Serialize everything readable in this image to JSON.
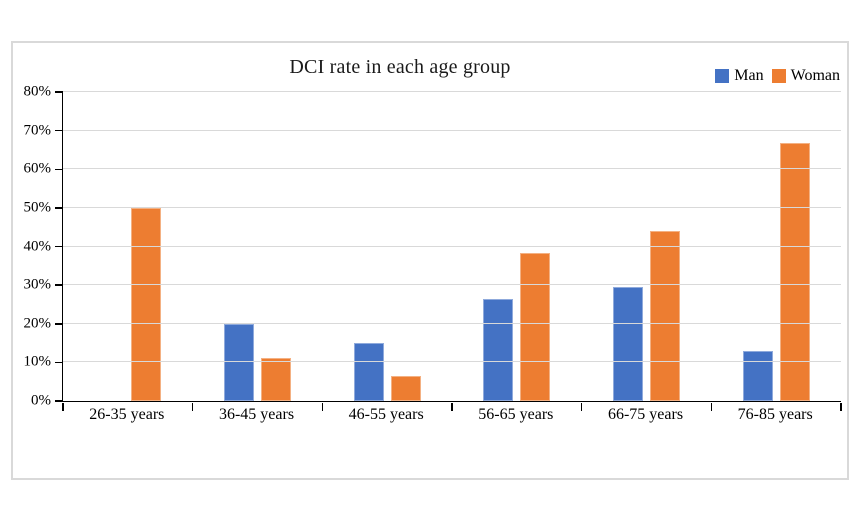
{
  "chart_data": {
    "type": "bar",
    "title": "DCI rate in each age group",
    "categories": [
      "26-35 years",
      "36-45 years",
      "46-55 years",
      "56-65 years",
      "66-75 years",
      "76-85 years"
    ],
    "series": [
      {
        "name": "Man",
        "color": "#4472C4",
        "edge_color": "#8FAADC",
        "values": [
          0,
          20,
          15,
          26.3,
          29.4,
          13
        ]
      },
      {
        "name": "Woman",
        "color": "#ED7D31",
        "edge_color": "#F4B183",
        "values": [
          50,
          11.1,
          6.4,
          38.2,
          44.1,
          66.7
        ]
      }
    ],
    "xlabel": "",
    "ylabel": "",
    "ylim": [
      0,
      80
    ],
    "ytick_step": 10,
    "ytick_labels": [
      "0%",
      "10%",
      "20%",
      "30%",
      "40%",
      "50%",
      "60%",
      "70%",
      "80%"
    ],
    "grid": true,
    "gridline_color": "#D9D9D9",
    "axis_color": "#000000",
    "frame_border_color": "#D9D9D9",
    "legend_position": "top-right"
  }
}
